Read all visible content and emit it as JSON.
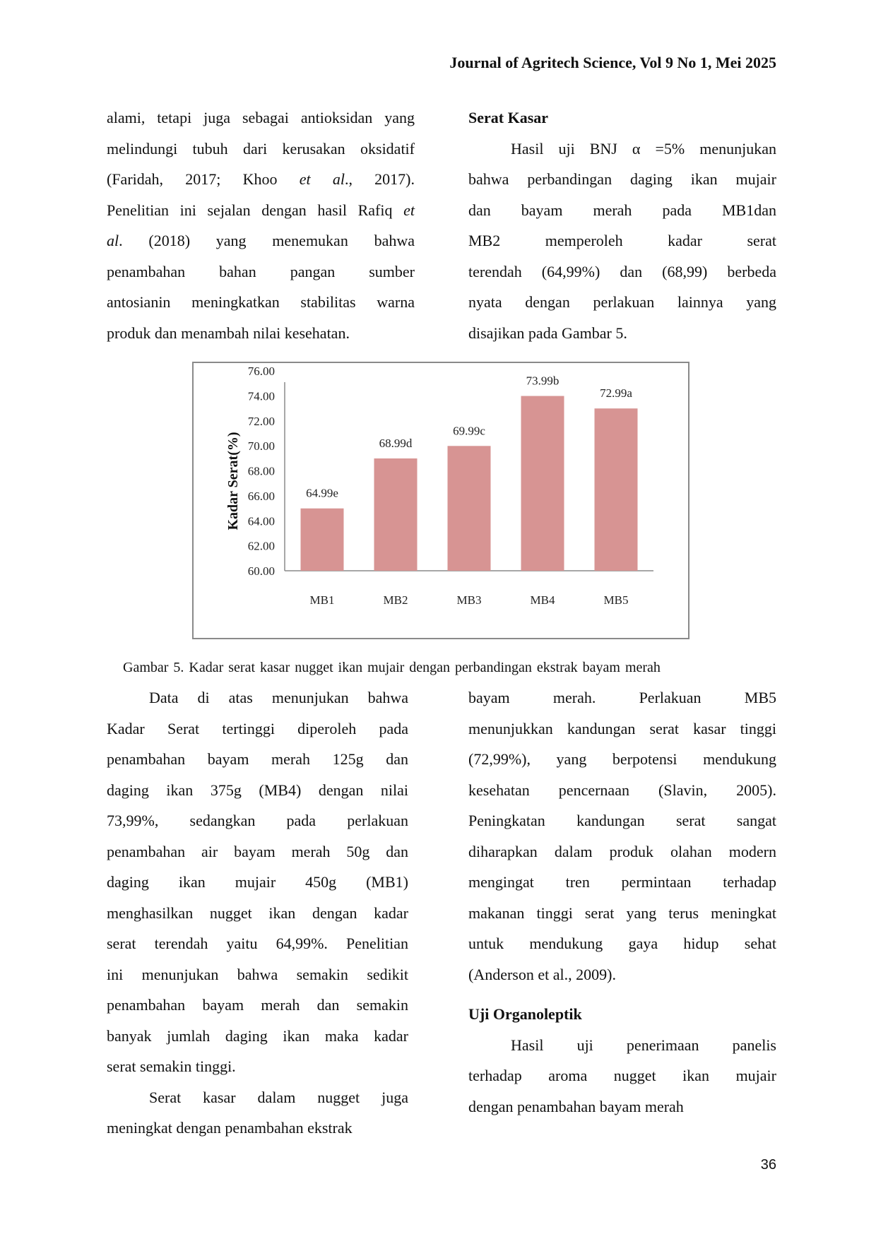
{
  "header": {
    "journal": "Journal of Agritech Science, Vol 9 No 1, Mei 2025"
  },
  "top_left": {
    "lines": [
      "alami, tetapi juga sebagai antioksidan yang",
      "melindungi tubuh dari kerusakan oksidatif",
      [
        {
          "text": "(Faridah, 2017; Khoo "
        },
        {
          "text": "et al",
          "italic": true
        },
        {
          "text": "., 2017)."
        }
      ],
      [
        {
          "text": "Penelitian ini sejalan dengan hasil Rafiq "
        },
        {
          "text": "et",
          "italic": true
        }
      ],
      [
        {
          "text": "al",
          "italic": true
        },
        {
          "text": ". (2018) yang menemukan bahwa"
        }
      ],
      "penambahan bahan pangan sumber",
      "antosianin meningkatkan stabilitas warna",
      "produk dan menambah nilai kesehatan."
    ]
  },
  "top_right": {
    "lines": [
      "Serat Kasar",
      "Hasil uji BNJ α =5% menunjukan",
      "bahwa perbandingan daging ikan mujair",
      "dan bayam merah pada MB1dan",
      "MB2 memperoleh kadar serat",
      "terendah (64,99%) dan (68,99) berbeda",
      "nyata dengan perlakuan lainnya yang",
      "disajikan pada Gambar 5."
    ]
  },
  "chart_data": {
    "type": "bar",
    "categories": [
      "MB1",
      "MB2",
      "MB3",
      "MB4",
      "MB5"
    ],
    "values": [
      64.99,
      68.99,
      69.99,
      73.99,
      72.99
    ],
    "data_labels": [
      "64.99e",
      "68.99d",
      "69.99c",
      "73.99b",
      "72.99a"
    ],
    "ylabel": "Kadar Serat(%)",
    "xlabel": "",
    "ylim": [
      60,
      76
    ],
    "yticks": [
      "60.00",
      "62.00",
      "64.00",
      "66.00",
      "68.00",
      "70.00",
      "72.00",
      "74.00",
      "76.00"
    ],
    "grid": false,
    "bar_color": "#d79493"
  },
  "caption": "Gambar 5. Kadar serat kasar nugget ikan mujair dengan perbandingan ekstrak bayam merah",
  "bottom_left": {
    "lines": [
      "Data di atas menunjukan bahwa",
      "Kadar Serat tertinggi diperoleh pada",
      "penambahan bayam merah 125g dan",
      "daging ikan 375g (MB4) dengan nilai",
      "73,99%, sedangkan pada perlakuan",
      "penambahan air bayam merah 50g dan",
      "daging ikan mujair 450g (MB1)",
      "menghasilkan nugget ikan dengan kadar",
      "serat terendah yaitu 64,99%. Penelitian",
      "ini menunjukan bahwa semakin sedikit",
      "penambahan bayam merah dan semakin",
      "banyak jumlah daging ikan maka kadar",
      "serat semakin tinggi.",
      "Serat kasar dalam nugget juga",
      "meningkat dengan penambahan ekstrak"
    ]
  },
  "bottom_right": {
    "lines": [
      "bayam merah. Perlakuan MB5",
      "menunjukkan kandungan serat kasar tinggi",
      "(72,99%), yang berpotensi mendukung",
      "kesehatan pencernaan (Slavin, 2005).",
      "Peningkatan kandungan serat sangat",
      "diharapkan dalam produk olahan modern",
      "mengingat tren permintaan terhadap",
      "makanan tinggi serat yang terus meningkat",
      "untuk mendukung gaya hidup sehat",
      "(Anderson et al., 2009).",
      "Uji Organoleptik",
      "Hasil uji penerimaan panelis",
      "terhadap aroma nugget ikan mujair",
      "dengan penambahan bayam merah"
    ]
  },
  "page_number": "36"
}
